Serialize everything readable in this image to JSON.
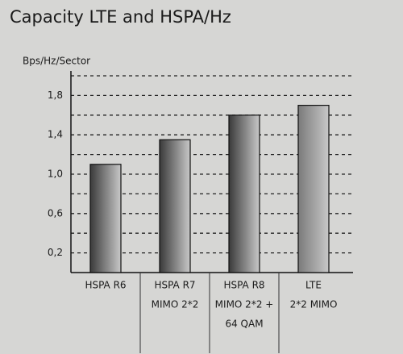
{
  "chart_data": {
    "type": "bar",
    "title": "Capacity LTE and HSPA/Hz",
    "y_label": "Bps/Hz/Sector",
    "categories": [
      [
        "HSPA R6"
      ],
      [
        "HSPA R7",
        "MIMO 2*2"
      ],
      [
        "HSPA R8",
        "MIMO 2*2 +",
        "64 QAM"
      ],
      [
        "LTE",
        "2*2 MIMO"
      ]
    ],
    "values": [
      1.1,
      1.35,
      1.6,
      1.7
    ],
    "colors": [
      "#3a3a3a",
      "#3a3a3a",
      "#3a3a3a",
      "#7a7a7a"
    ],
    "ylim": [
      0,
      2.0
    ],
    "yticks": [
      {
        "value": 0.2,
        "label": "0,2"
      },
      {
        "value": 0.6,
        "label": "0,6"
      },
      {
        "value": 1.0,
        "label": "1,0"
      },
      {
        "value": 1.4,
        "label": "1,4"
      },
      {
        "value": 1.8,
        "label": "1,8"
      }
    ],
    "minor_yticks": [
      0.4,
      0.8,
      1.2,
      1.6,
      2.0
    ],
    "grid": true
  }
}
